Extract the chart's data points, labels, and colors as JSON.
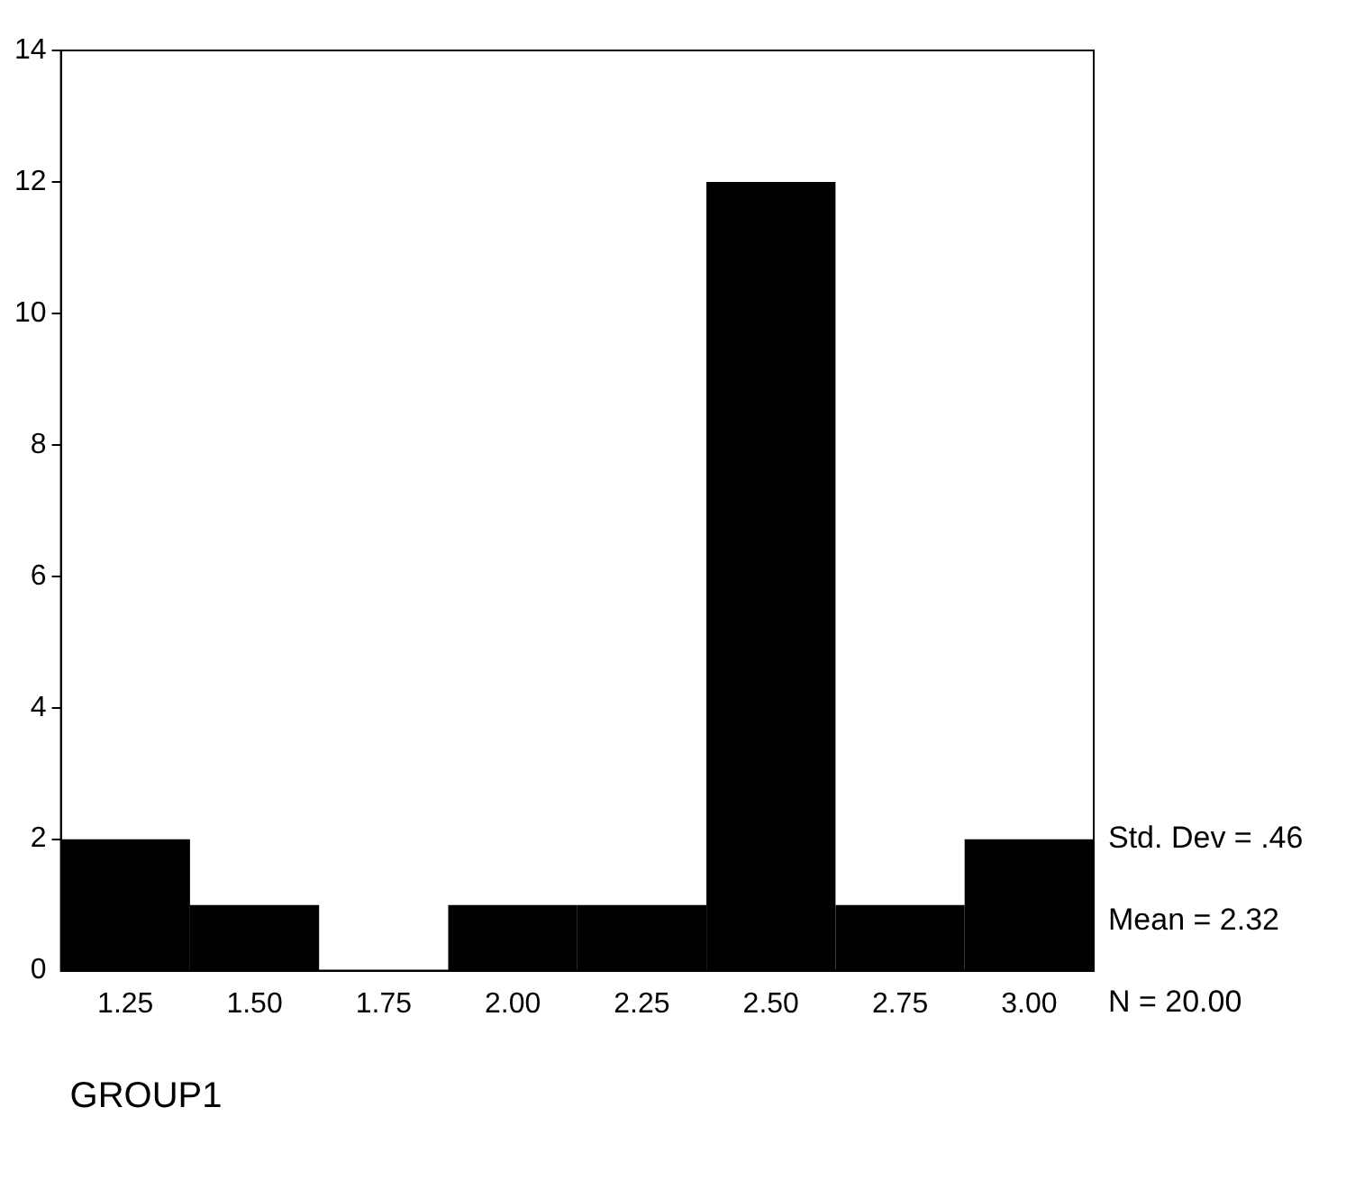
{
  "chart_data": {
    "type": "histogram",
    "xlabel": "GROUP1",
    "bins": [
      1.125,
      1.375,
      1.625,
      1.875,
      2.125,
      2.375,
      2.625,
      2.875,
      3.125
    ],
    "values": [
      2,
      1,
      0,
      1,
      1,
      12,
      1,
      2
    ],
    "color": "#000000",
    "xlim": [
      1.125,
      3.125
    ],
    "xticks": [
      {
        "value": 1.25,
        "label": "1.25"
      },
      {
        "value": 1.5,
        "label": "1.50"
      },
      {
        "value": 1.75,
        "label": "1.75"
      },
      {
        "value": 2,
        "label": "2.00"
      },
      {
        "value": 2.25,
        "label": "2.25"
      },
      {
        "value": 2.5,
        "label": "2.50"
      },
      {
        "value": 2.75,
        "label": "2.75"
      },
      {
        "value": 3,
        "label": "3.00"
      }
    ],
    "ylim": [
      0,
      14
    ],
    "yticks": [
      0,
      2,
      4,
      6,
      8,
      10,
      12,
      14
    ],
    "grid": false,
    "legend": false,
    "annotations": [
      "Std. Dev = .46",
      "Mean = 2.32",
      "N = 20.00"
    ]
  }
}
